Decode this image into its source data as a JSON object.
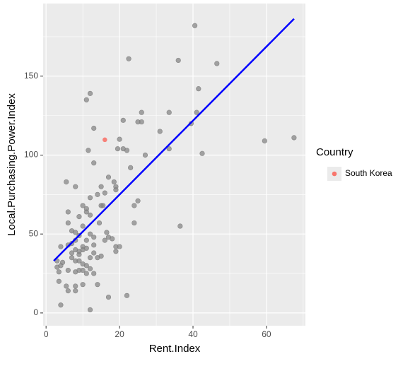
{
  "chart_data": {
    "type": "scatter",
    "xlabel": "Rent.Index",
    "ylabel": "Local.Purchasing.Power.Index",
    "xlim": [
      -0.8,
      70.6
    ],
    "ylim": [
      -8.1,
      196
    ],
    "xticks": [
      0,
      20,
      40,
      60
    ],
    "yticks": [
      0,
      50,
      100,
      150
    ],
    "grid": true,
    "legend_title": "Country",
    "legend_position": "right",
    "series": [
      {
        "name": "South Korea",
        "color": "#f8766d",
        "x": [
          16
        ],
        "y": [
          109.7
        ]
      }
    ],
    "background_points": {
      "color": "#808080",
      "x": [
        40.5,
        22.5,
        36,
        46.5,
        12,
        11,
        41.5,
        26,
        33.5,
        21,
        41,
        13,
        25,
        26,
        31,
        39.5,
        20,
        21,
        22,
        19.5,
        33.5,
        27,
        42.5,
        59.5,
        67.5,
        11.5,
        13,
        23,
        17,
        18.5,
        19,
        19,
        15,
        8,
        5.5,
        12,
        14,
        16,
        25,
        24,
        15,
        15.5,
        11,
        10,
        11,
        6,
        9,
        12,
        6,
        14.5,
        24,
        36.5,
        10,
        7,
        8,
        9,
        12,
        13,
        16,
        17,
        19,
        20,
        18,
        16.5,
        11,
        13,
        8,
        7,
        10,
        10,
        11,
        8,
        7,
        9,
        9,
        13,
        12,
        14,
        15,
        4,
        6,
        4.5,
        3,
        3,
        4,
        7,
        8,
        9,
        10,
        11,
        10,
        11,
        12,
        8,
        9,
        13,
        19,
        3.5,
        3.5,
        5.5,
        8,
        6,
        8,
        10,
        14,
        17,
        22,
        12,
        4,
        6
      ],
      "y": [
        182,
        161,
        160,
        158,
        139,
        135,
        142,
        127,
        127,
        122,
        127,
        117,
        121,
        121,
        115,
        120,
        110,
        104,
        103,
        104,
        104,
        100,
        101,
        109,
        111,
        103,
        95,
        92,
        86,
        83,
        80,
        78,
        80,
        80,
        83,
        73,
        75,
        76,
        71,
        68,
        68,
        68,
        64,
        68,
        66,
        64,
        61,
        62,
        57,
        57,
        57,
        55,
        55,
        52,
        51,
        49,
        50,
        48,
        46,
        48,
        42,
        42,
        47,
        51,
        46,
        43,
        46,
        44,
        42,
        40,
        41,
        40,
        38,
        39,
        37,
        38,
        35,
        35,
        36,
        42,
        43,
        32,
        29,
        33,
        30,
        35,
        33,
        33,
        31,
        30,
        27,
        25,
        28,
        26,
        27,
        25,
        39,
        26,
        20,
        17,
        17,
        14,
        14,
        18,
        18,
        10,
        11,
        2,
        5,
        27
      ]
    },
    "fit_line": {
      "color": "#0000ff",
      "x": [
        2.1,
        67.5
      ],
      "y": [
        33,
        186.3
      ]
    }
  }
}
